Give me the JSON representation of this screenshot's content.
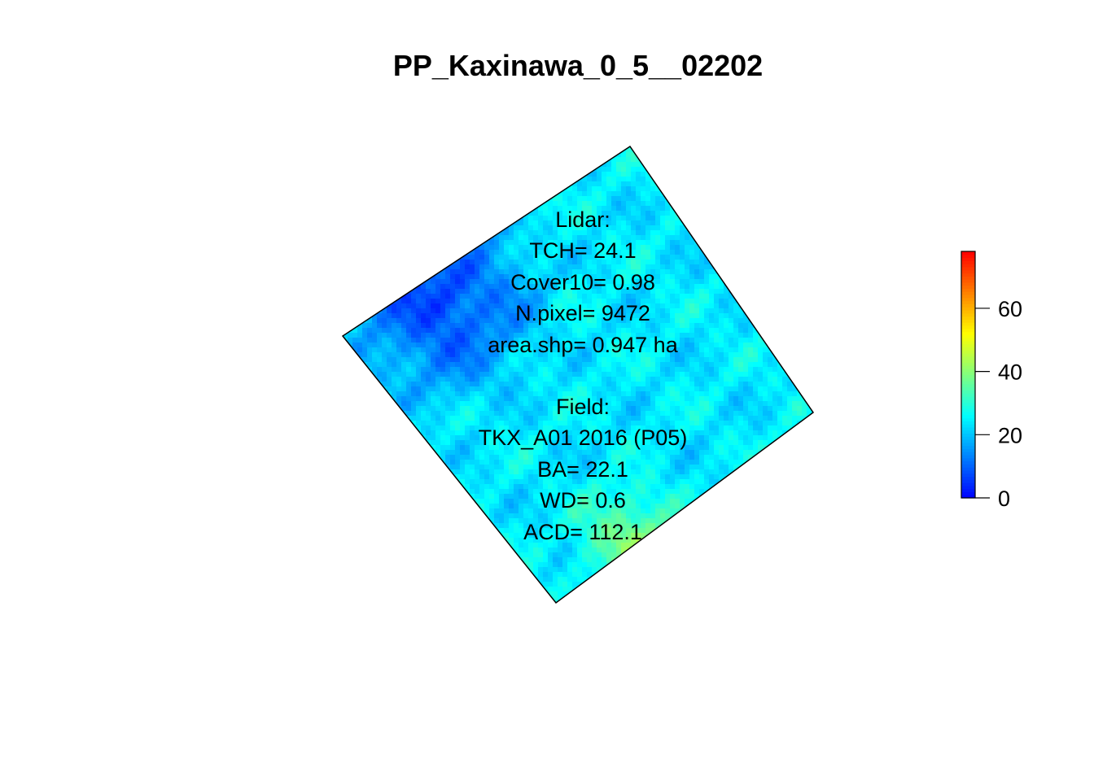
{
  "chart_data": {
    "type": "heatmap",
    "title": "PP_Kaxinawa_0_5__02202",
    "xlabel": "",
    "ylabel": "",
    "colorbar": {
      "ticks": [
        0,
        20,
        40,
        60
      ],
      "tick_labels": [
        "0",
        "20",
        "40",
        "60"
      ],
      "range": [
        0,
        78
      ],
      "palette": [
        "#0000ff",
        "#0080ff",
        "#00ffff",
        "#80ff80",
        "#ffff00",
        "#ff8000",
        "#ff0000"
      ]
    },
    "raster_summary": {
      "typical_value": 24,
      "low_zone_value": 5,
      "high_zone_value": 40
    },
    "annotation_lines": [
      "Lidar:",
      "TCH= 24.1",
      "Cover10= 0.98",
      "N.pixel= 9472",
      "area.shp= 0.947 ha",
      "",
      "Field:",
      "TKX_A01 2016 (P05)",
      "BA= 22.1",
      "WD= 0.6",
      "ACD= 112.1"
    ]
  }
}
